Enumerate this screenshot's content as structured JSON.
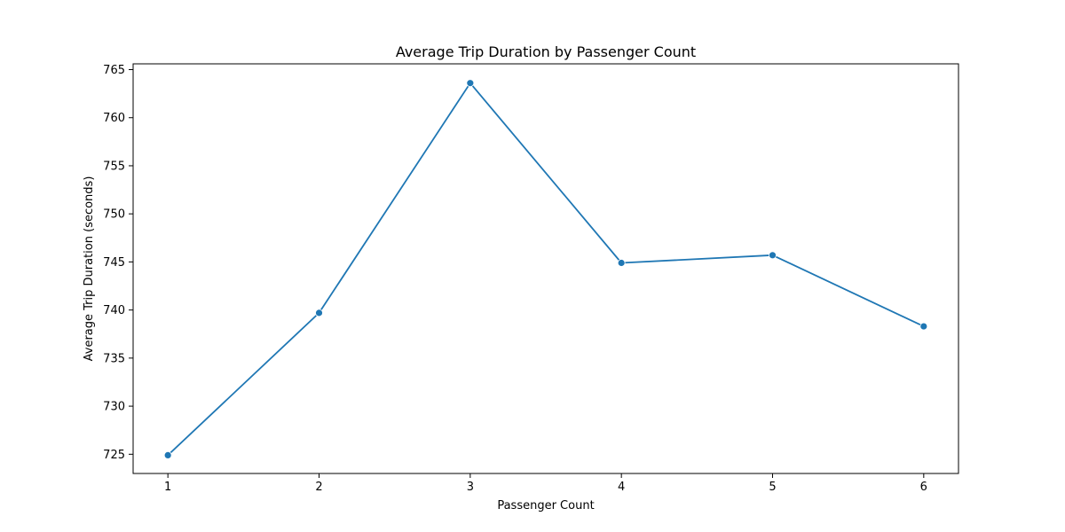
{
  "chart_data": {
    "type": "line",
    "title": "Average Trip Duration by Passenger Count",
    "xlabel": "Passenger Count",
    "ylabel": "Average Trip Duration (seconds)",
    "x": [
      1,
      2,
      3,
      4,
      5,
      6
    ],
    "x_ticks": [
      "1",
      "2",
      "3",
      "4",
      "5",
      "6"
    ],
    "y_ticks": [
      725,
      730,
      735,
      740,
      745,
      750,
      755,
      760,
      765
    ],
    "xlim": [
      0.77,
      6.23
    ],
    "ylim": [
      723.0,
      765.6
    ],
    "series": [
      {
        "values": [
          724.9,
          739.7,
          763.6,
          744.9,
          745.7,
          738.3
        ],
        "color": "#1f77b4",
        "marker": "circle"
      }
    ],
    "grid": false,
    "legend": "none"
  }
}
